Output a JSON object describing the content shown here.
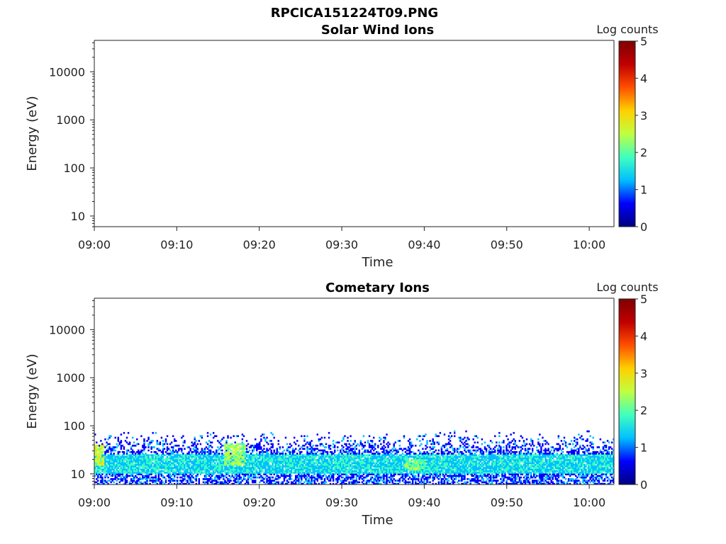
{
  "figure": {
    "title": "RPCICA151224T09.PNG"
  },
  "colormap": [
    "#00007f",
    "#0000ff",
    "#00bfff",
    "#40ffbf",
    "#c0ff40",
    "#ffd000",
    "#ff5000",
    "#c00000",
    "#7f0000"
  ],
  "chart_data": [
    {
      "type": "heatmap",
      "title": "Solar Wind Ions",
      "xlabel": "Time",
      "ylabel": "Energy (eV)",
      "y_scale": "log",
      "x_ticks": [
        "09:00",
        "09:10",
        "09:20",
        "09:30",
        "09:40",
        "09:50",
        "10:00"
      ],
      "y_ticks": [
        "10",
        "100",
        "1000",
        "10000"
      ],
      "y_tick_values": [
        10,
        100,
        1000,
        10000
      ],
      "xlim": [
        "09:00",
        "10:03"
      ],
      "ylim": [
        6,
        45000
      ],
      "colorbar": {
        "label": "Log counts",
        "ticks": [
          "0",
          "1",
          "2",
          "3",
          "4",
          "5"
        ],
        "range": [
          0,
          5
        ]
      },
      "data_summary": {
        "signal": "none"
      }
    },
    {
      "type": "heatmap",
      "title": "Cometary Ions",
      "xlabel": "Time",
      "ylabel": "Energy (eV)",
      "y_scale": "log",
      "x_ticks": [
        "09:00",
        "09:10",
        "09:20",
        "09:30",
        "09:40",
        "09:50",
        "10:00"
      ],
      "y_ticks": [
        "10",
        "100",
        "1000",
        "10000"
      ],
      "y_tick_values": [
        10,
        100,
        1000,
        10000
      ],
      "xlim": [
        "09:00",
        "10:03"
      ],
      "ylim": [
        6,
        45000
      ],
      "colorbar": {
        "label": "Log counts",
        "ticks": [
          "0",
          "1",
          "2",
          "3",
          "4",
          "5"
        ],
        "range": [
          0,
          5
        ]
      },
      "data_summary": {
        "signal": "present",
        "energy_range_eV": [
          6,
          80
        ],
        "core_band_eV": [
          10,
          25
        ],
        "core_log_counts": 1.5,
        "max_log_counts": 3,
        "bright_patches": [
          {
            "time": "09:00",
            "energy_eV": [
              15,
              40
            ],
            "log_counts": 3
          },
          {
            "time": "09:17",
            "energy_eV": [
              15,
              45
            ],
            "log_counts": 2.8
          },
          {
            "time": "09:39",
            "energy_eV": [
              12,
              20
            ],
            "log_counts": 2.5
          }
        ]
      }
    }
  ]
}
